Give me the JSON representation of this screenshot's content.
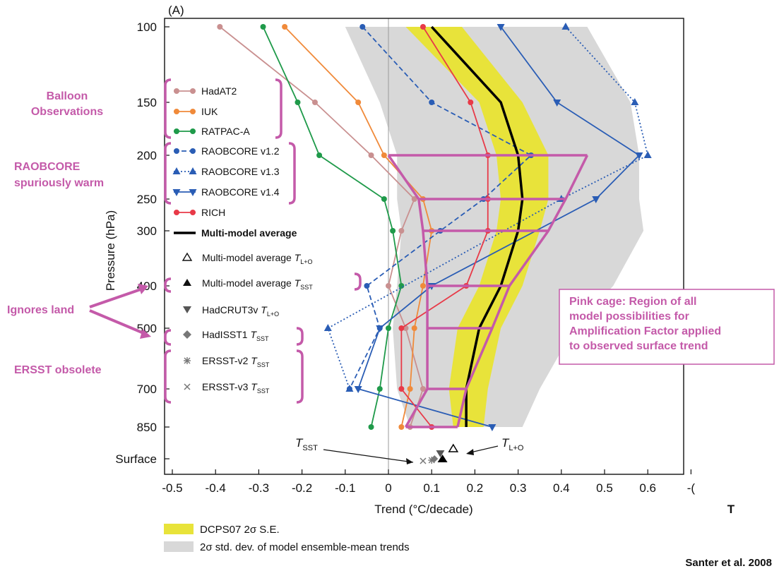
{
  "chart_data": {
    "type": "line",
    "panel_label": "(A)",
    "xlabel": "Trend (°C/decade)",
    "ylabel": "Pressure (hPa)",
    "xlim": [
      -0.5,
      0.65
    ],
    "x_ticks": [
      "-0.5",
      "-0.4",
      "-0.3",
      "-0.2",
      "-0.1",
      "0",
      "0.1",
      "0.2",
      "0.3",
      "0.4",
      "0.5",
      "0.6",
      "-("
    ],
    "right_edge_label": "T",
    "levels": [
      "100",
      "150",
      "200",
      "250",
      "300",
      "400",
      "500",
      "700",
      "850",
      "Surface"
    ],
    "series": [
      {
        "name": "HadAT2",
        "color": "#c99090",
        "marker": "circle",
        "dash": "solid",
        "values": [
          -0.39,
          -0.17,
          -0.04,
          0.06,
          0.03,
          0.0,
          0.04,
          0.08,
          0.05
        ]
      },
      {
        "name": "IUK",
        "color": "#f08a3a",
        "marker": "circle",
        "dash": "solid",
        "values": [
          -0.24,
          -0.07,
          -0.01,
          0.08,
          0.1,
          0.08,
          0.06,
          0.05,
          0.03
        ]
      },
      {
        "name": "RATPAC-A",
        "color": "#1f9a4a",
        "marker": "circle",
        "dash": "solid",
        "values": [
          -0.29,
          -0.21,
          -0.16,
          -0.01,
          0.01,
          0.03,
          0.0,
          -0.02,
          -0.04
        ]
      },
      {
        "name": "RAOBCORE v1.2",
        "color": "#2a5db5",
        "marker": "circle",
        "dash": "dashed",
        "values": [
          -0.06,
          0.1,
          0.33,
          0.22,
          0.12,
          -0.05,
          -0.02,
          -0.09,
          null
        ]
      },
      {
        "name": "RAOBCORE v1.3",
        "color": "#2a5db5",
        "marker": "triangle",
        "dash": "dotted",
        "values": [
          0.41,
          0.57,
          0.6,
          0.4,
          null,
          null,
          -0.14,
          -0.09,
          null
        ]
      },
      {
        "name": "RAOBCORE v1.4",
        "color": "#2a5db5",
        "marker": "triangle-down",
        "dash": "solid",
        "values": [
          0.26,
          0.39,
          0.58,
          0.48,
          null,
          0.1,
          -0.02,
          -0.07,
          0.24
        ]
      },
      {
        "name": "RICH",
        "color": "#e83a48",
        "marker": "circle",
        "dash": "solid",
        "values": [
          0.08,
          0.19,
          0.23,
          0.23,
          0.23,
          0.18,
          0.03,
          0.03,
          0.1
        ]
      },
      {
        "name": "Multi-model average",
        "color": "#000000",
        "marker": "none",
        "dash": "solid",
        "values": [
          0.1,
          0.26,
          0.3,
          0.31,
          0.3,
          0.26,
          0.21,
          0.18,
          0.18
        ]
      }
    ],
    "yellow_band": {
      "lower": [
        0.04,
        0.21,
        0.25,
        0.26,
        0.25,
        0.21,
        0.16,
        0.14,
        0.15
      ],
      "upper": [
        0.17,
        0.31,
        0.37,
        0.37,
        0.35,
        0.31,
        0.26,
        0.23,
        0.22
      ]
    },
    "gray_band": {
      "lower": [
        -0.1,
        -0.02,
        0.02,
        0.02,
        0.03,
        0.02,
        0.01,
        0.02,
        0.05
      ],
      "upper": [
        0.46,
        0.56,
        0.58,
        0.58,
        0.59,
        0.52,
        0.43,
        0.35,
        0.31
      ]
    },
    "cage": {
      "rungs": [
        {
          "level": "200",
          "left": 0.0,
          "right": 0.46
        },
        {
          "level": "250",
          "left": 0.07,
          "right": 0.41
        },
        {
          "level": "300",
          "left": 0.08,
          "right": 0.37
        },
        {
          "level": "400",
          "left": 0.09,
          "right": 0.28
        },
        {
          "level": "500",
          "left": 0.09,
          "right": 0.24
        },
        {
          "level": "700",
          "left": 0.09,
          "right": 0.18
        },
        {
          "level": "850",
          "left": 0.04,
          "right": 0.16
        }
      ]
    },
    "surface_points": [
      {
        "name": "Multi-model average T_L+O",
        "x": 0.15,
        "marker": "open-triangle",
        "color": "#000000"
      },
      {
        "name": "Multi-model average T_SST",
        "x": 0.13,
        "marker": "filled-triangle",
        "color": "#000000"
      },
      {
        "name": "HadCRUT3v T_L+O",
        "x": 0.12,
        "marker": "triangle-down",
        "color": "#555555"
      },
      {
        "name": "HadISST1 T_SST",
        "x": 0.1,
        "marker": "diamond",
        "color": "#777777"
      },
      {
        "name": "ERSST-v2 T_SST",
        "x": 0.1,
        "marker": "asterisk",
        "color": "#777777"
      },
      {
        "name": "ERSST-v3 T_SST",
        "x": 0.08,
        "marker": "x",
        "color": "#777777"
      }
    ],
    "surface_labels": {
      "t_sst_main": "T",
      "t_sst_sub": "SST",
      "t_lo_main": "T",
      "t_lo_sub": "L+O"
    }
  },
  "legend": {
    "items": [
      {
        "label": "HadAT2"
      },
      {
        "label": "IUK"
      },
      {
        "label": "RATPAC-A"
      },
      {
        "label": "RAOBCORE v1.2"
      },
      {
        "label": "RAOBCORE v1.3"
      },
      {
        "label": "RAOBCORE v1.4"
      },
      {
        "label": "RICH"
      },
      {
        "label": "Multi-model average"
      }
    ],
    "subscript_items": [
      {
        "label": "Multi-model average ",
        "var": "T",
        "sub": "L+O"
      },
      {
        "label": "Multi-model average ",
        "var": "T",
        "sub": "SST"
      },
      {
        "label": "HadCRUT3v ",
        "var": "T",
        "sub": "L+O"
      },
      {
        "label": "HadISST1 ",
        "var": "T",
        "sub": "SST"
      },
      {
        "label": "ERSST-v2 ",
        "var": "T",
        "sub": "SST"
      },
      {
        "label": "ERSST-v3 ",
        "var": "T",
        "sub": "SST"
      }
    ],
    "bands": [
      {
        "label": "DCPS07 2σ S.E.",
        "color": "#e8e33a"
      },
      {
        "label": "2σ std. dev. of model ensemble-mean trends",
        "color": "#d8d8d8"
      }
    ]
  },
  "annotations": {
    "balloon": [
      "Balloon",
      "Observations"
    ],
    "raobcore": [
      "RAOBCORE",
      "spuriously warm"
    ],
    "ignores": "Ignores land",
    "ersst": "ERSST obsolete",
    "pink_cage": [
      "Pink cage: Region of all",
      "model possibilities for",
      "Amplification Factor applied",
      "to observed surface trend"
    ],
    "credit": "Santer et al. 2008"
  },
  "colors": {
    "annotation": "#c45aa9",
    "yellow": "#e8e33a",
    "gray": "#d8d8d8"
  }
}
